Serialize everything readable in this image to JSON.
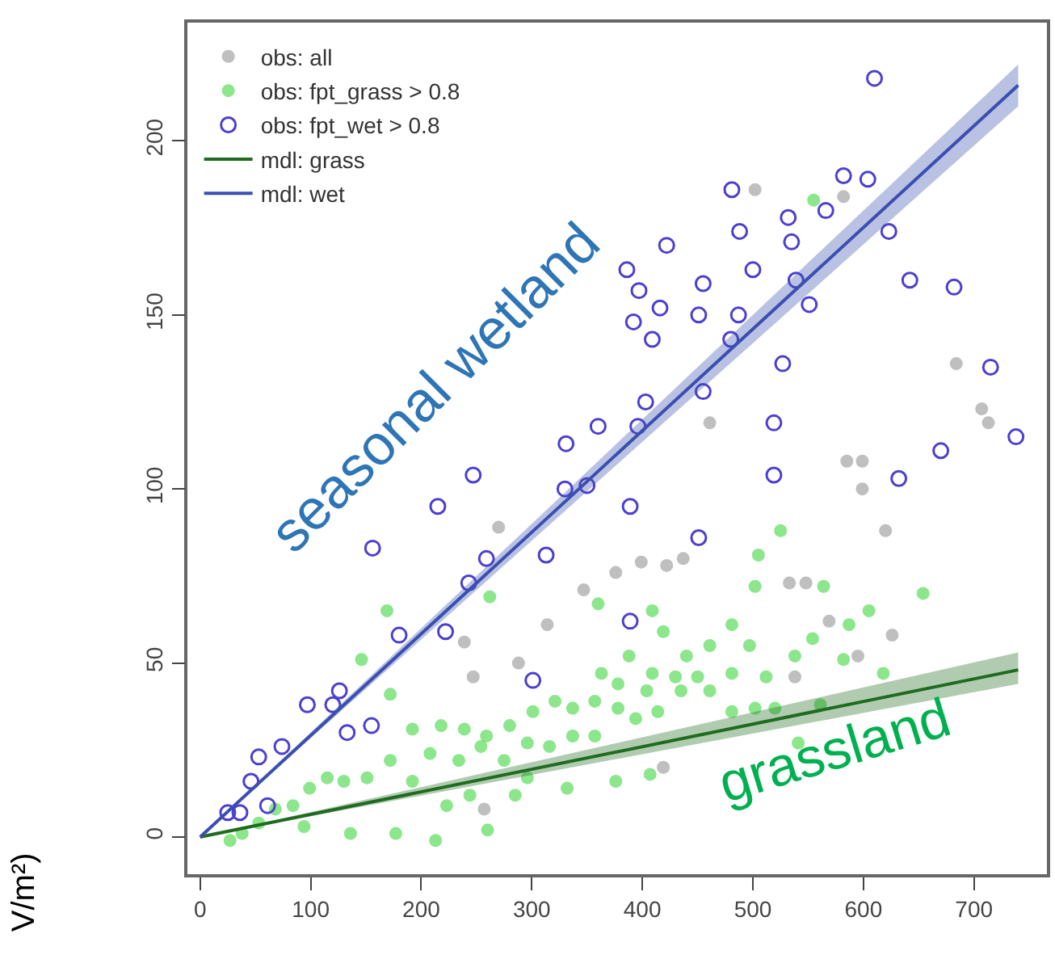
{
  "chart_data": {
    "type": "scatter",
    "ylabel": "V/m²)",
    "xlim": [
      -11.5,
      766
    ],
    "ylim": [
      -10.7,
      234
    ],
    "xticks": [
      0,
      100,
      200,
      300,
      400,
      500,
      600,
      700
    ],
    "yticks": [
      0,
      50,
      100,
      150,
      200
    ],
    "legend": "top left",
    "annotations": [
      "seasonal wetland",
      "grassland"
    ],
    "series": [
      {
        "name": "obs: all",
        "marker": "circle",
        "color": "#aaaaaa",
        "x": [
          585,
          599,
          599,
          620,
          626,
          595,
          569,
          533,
          548,
          437,
          422,
          399,
          376,
          347,
          314,
          239,
          247,
          270,
          288,
          257,
          419,
          538,
          502,
          582,
          461,
          684,
          707,
          713
        ],
        "values": [
          108,
          108,
          100,
          88,
          58,
          52,
          62,
          73,
          73,
          80,
          78,
          79,
          76,
          71,
          61,
          56,
          46,
          89,
          50,
          8,
          20,
          46,
          186,
          184,
          119,
          136,
          123,
          119
        ]
      },
      {
        "name": "obs: fpt_grass > 0.8",
        "marker": "circle",
        "color": "#66dd66",
        "x": [
          525,
          505,
          502,
          564,
          654,
          605,
          587,
          554,
          538,
          582,
          618,
          561,
          541,
          262,
          169,
          360,
          409,
          419,
          440,
          461,
          481,
          497,
          512,
          481,
          450,
          430,
          404,
          378,
          357,
          337,
          321,
          301,
          280,
          259,
          239,
          218,
          192,
          172,
          151,
          130,
          115,
          99,
          84,
          68,
          53,
          38,
          27,
          146,
          172,
          208,
          234,
          254,
          275,
          296,
          316,
          337,
          357,
          378,
          394,
          414,
          435,
          461,
          481,
          502,
          520,
          136,
          177,
          213,
          260,
          244,
          285,
          332,
          376,
          407,
          223,
          94,
          363,
          388,
          409,
          296,
          192,
          555
        ],
        "values": [
          88,
          81,
          72,
          72,
          70,
          65,
          61,
          57,
          52,
          51,
          47,
          38,
          27,
          69,
          65,
          67,
          65,
          59,
          52,
          55,
          61,
          55,
          46,
          47,
          46,
          46,
          42,
          44,
          39,
          37,
          39,
          36,
          32,
          29,
          31,
          32,
          31,
          22,
          17,
          16,
          17,
          14,
          9,
          8,
          4,
          1,
          -1,
          51,
          41,
          24,
          22,
          26,
          22,
          27,
          26,
          29,
          29,
          37,
          34,
          36,
          42,
          42,
          36,
          37,
          37,
          1,
          1,
          -1,
          2,
          12,
          12,
          14,
          16,
          18,
          9,
          3,
          47,
          52,
          47,
          17,
          16,
          183
        ]
      },
      {
        "name": "obs: fpt_wet > 0.8",
        "marker": "circle-open",
        "color": "#4b3fd0",
        "x": [
          610,
          582,
          604,
          481,
          566,
          532,
          488,
          623,
          422,
          535,
          386,
          500,
          642,
          682,
          397,
          455,
          539,
          416,
          451,
          487,
          551,
          392,
          409,
          480,
          527,
          715,
          403,
          455,
          519,
          360,
          396,
          331,
          670,
          738,
          247,
          519,
          632,
          215,
          330,
          350,
          389,
          156,
          451,
          313,
          259,
          243,
          389,
          180,
          222,
          301,
          126,
          97,
          120,
          133,
          155,
          74,
          53,
          46,
          61,
          36,
          25
        ],
        "values": [
          218,
          190,
          189,
          186,
          180,
          178,
          174,
          174,
          170,
          171,
          163,
          163,
          160,
          158,
          157,
          159,
          160,
          152,
          150,
          150,
          153,
          148,
          143,
          143,
          136,
          135,
          125,
          128,
          119,
          118,
          118,
          113,
          111,
          115,
          104,
          104,
          103,
          95,
          100,
          101,
          95,
          83,
          86,
          81,
          80,
          73,
          62,
          58,
          59,
          45,
          42,
          38,
          38,
          30,
          32,
          26,
          23,
          16,
          9,
          7,
          7
        ]
      },
      {
        "name": "mdl: grass",
        "type": "line",
        "color": "#1f6b1f",
        "x": [
          0,
          740
        ],
        "values": [
          0,
          48
        ],
        "lower": [
          0,
          44
        ],
        "upper": [
          0,
          53
        ]
      },
      {
        "name": "mdl: wet",
        "type": "line",
        "color": "#3a4fb0",
        "x": [
          0,
          740
        ],
        "values": [
          0,
          216
        ],
        "lower": [
          0,
          210
        ],
        "upper": [
          0,
          222
        ]
      }
    ]
  }
}
